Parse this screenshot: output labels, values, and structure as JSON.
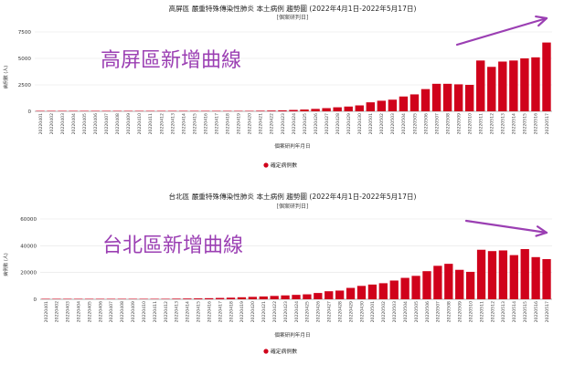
{
  "charts": [
    {
      "title": "高屏區 嚴重特殊傳染性肺炎 本土病例 趨勢圖 (2022年4月1日-2022年5月17日)",
      "subtitle": "[個案研判日]",
      "annotation": "高屏區新增曲線",
      "annotation_color": "#9b3fb3"
    },
    {
      "title": "台北區 嚴重特殊傳染性肺炎 本土病例 趨勢圖 (2022年4月1日-2022年5月17日)",
      "subtitle": "[個案研判日]",
      "annotation": "台北區新增曲線",
      "annotation_color": "#9b3fb3"
    }
  ],
  "chart_data": [
    {
      "type": "bar",
      "title": "高屏區 嚴重特殊傳染性肺炎 本土病例 趨勢圖 (2022年4月1日-2022年5月17日)",
      "subtitle": "[個案研判日]",
      "xlabel": "個案研判年月日",
      "ylabel": "病例數 (人)",
      "ylim": [
        0,
        7500
      ],
      "yticks": [
        0,
        2500,
        5000,
        7500
      ],
      "legend": "確定病例數",
      "legend_position": "bottom-center",
      "grid": true,
      "bar_color": "#d0021b",
      "categories": [
        "20220401",
        "20220402",
        "20220403",
        "20220404",
        "20220405",
        "20220406",
        "20220407",
        "20220408",
        "20220409",
        "20220410",
        "20220411",
        "20220412",
        "20220413",
        "20220414",
        "20220415",
        "20220416",
        "20220417",
        "20220418",
        "20220419",
        "20220420",
        "20220421",
        "20220422",
        "20220423",
        "20220424",
        "20220425",
        "20220426",
        "20220427",
        "20220428",
        "20220429",
        "20220430",
        "20220501",
        "20220502",
        "20220503",
        "20220504",
        "20220505",
        "20220506",
        "20220507",
        "20220508",
        "20220509",
        "20220510",
        "20220511",
        "20220512",
        "20220513",
        "20220514",
        "20220515",
        "20220516",
        "20220517"
      ],
      "values": [
        2,
        1,
        1,
        1,
        1,
        2,
        1,
        2,
        1,
        2,
        3,
        3,
        4,
        6,
        8,
        10,
        15,
        20,
        30,
        40,
        55,
        70,
        90,
        130,
        170,
        230,
        300,
        380,
        450,
        560,
        850,
        1000,
        1100,
        1400,
        1600,
        2100,
        2600,
        2600,
        2550,
        2500,
        4800,
        4200,
        4700,
        4800,
        5000,
        5100,
        6500
      ]
    },
    {
      "type": "bar",
      "title": "台北區 嚴重特殊傳染性肺炎 本土病例 趨勢圖 (2022年4月1日-2022年5月17日)",
      "subtitle": "[個案研判日]",
      "xlabel": "個案研判年月日",
      "ylabel": "病例數 (人)",
      "ylim": [
        0,
        60000
      ],
      "yticks": [
        0,
        20000,
        40000,
        60000
      ],
      "legend": "確定病例數",
      "legend_position": "bottom-center",
      "grid": true,
      "bar_color": "#d0021b",
      "categories": [
        "20220401",
        "20220402",
        "20220403",
        "20220404",
        "20220405",
        "20220406",
        "20220407",
        "20220408",
        "20220409",
        "20220410",
        "20220411",
        "20220412",
        "20220413",
        "20220414",
        "20220415",
        "20220416",
        "20220417",
        "20220418",
        "20220419",
        "20220420",
        "20220421",
        "20220422",
        "20220423",
        "20220424",
        "20220425",
        "20220426",
        "20220427",
        "20220428",
        "20220429",
        "20220430",
        "20220501",
        "20220502",
        "20220503",
        "20220504",
        "20220505",
        "20220506",
        "20220507",
        "20220508",
        "20220509",
        "20220510",
        "20220511",
        "20220512",
        "20220513",
        "20220514",
        "20220515",
        "20220516",
        "20220517"
      ],
      "values": [
        60,
        40,
        40,
        50,
        70,
        90,
        110,
        140,
        180,
        230,
        280,
        350,
        450,
        550,
        650,
        800,
        1000,
        1200,
        1500,
        1800,
        2100,
        2500,
        2900,
        3300,
        3700,
        4700,
        6000,
        6500,
        8500,
        10000,
        11000,
        12000,
        14000,
        16000,
        17500,
        21000,
        25000,
        26500,
        22000,
        20500,
        37000,
        36000,
        36500,
        33000,
        37500,
        31500,
        30000
      ]
    }
  ]
}
